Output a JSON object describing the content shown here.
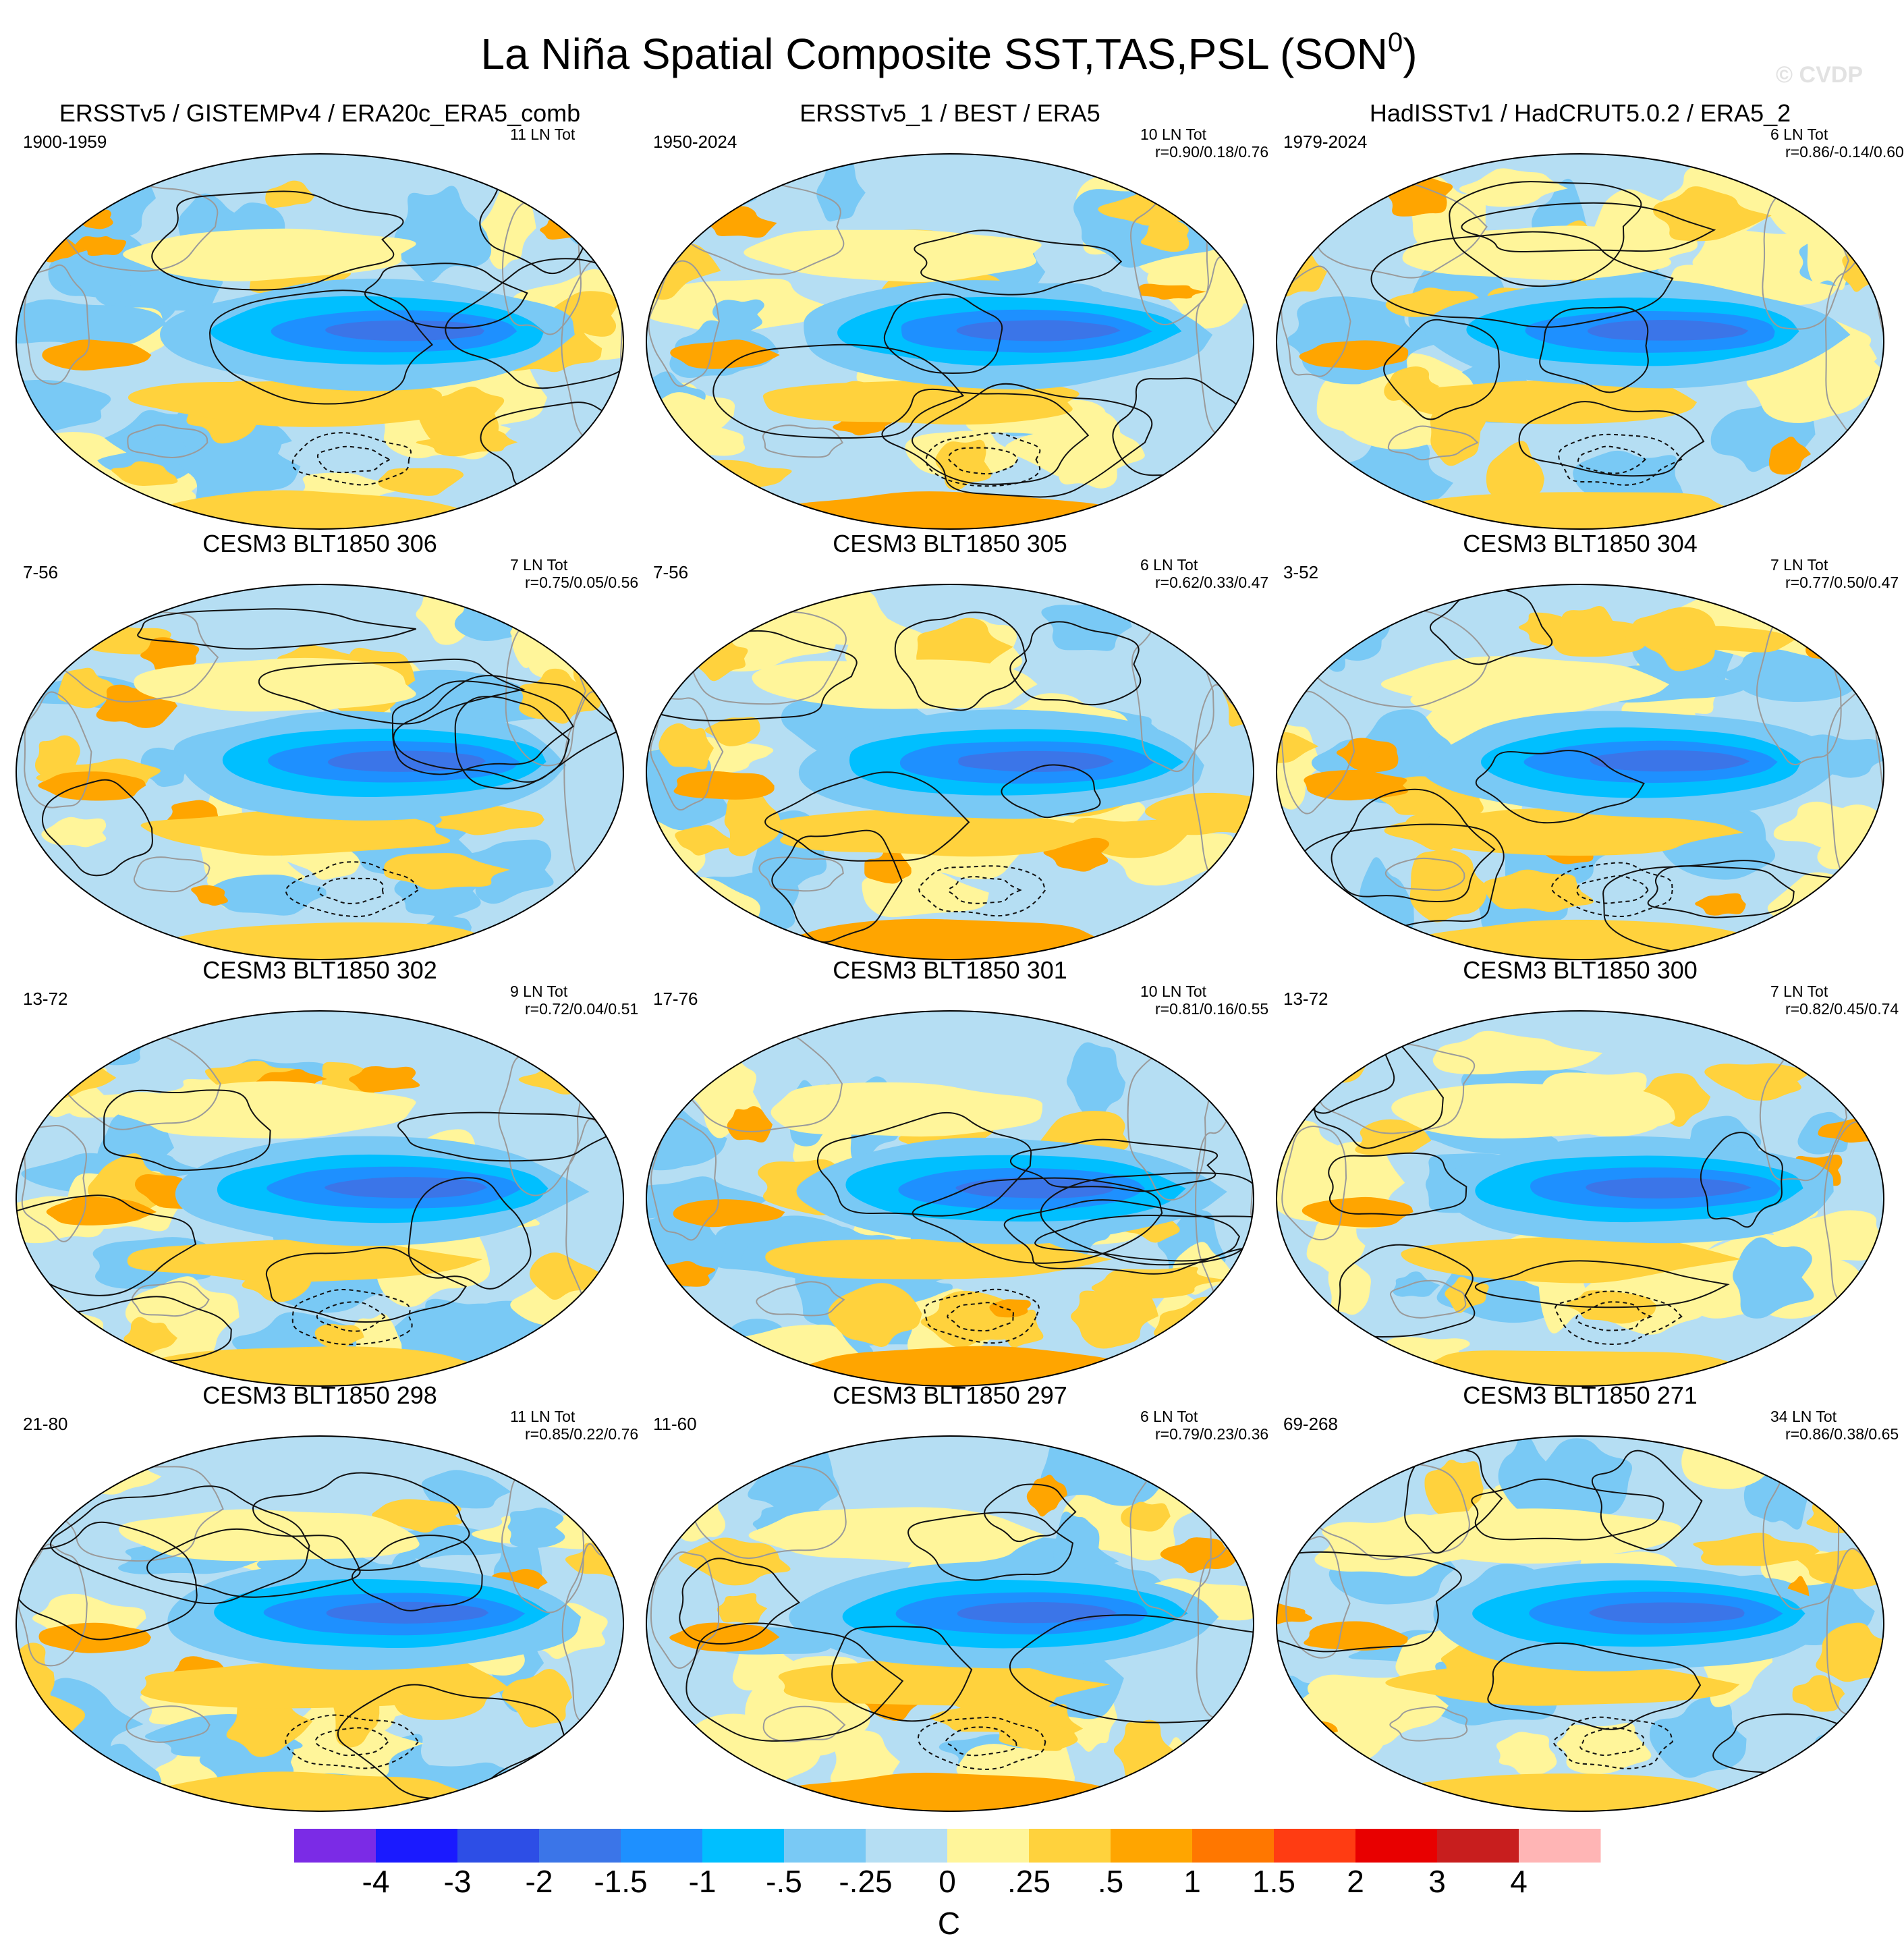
{
  "figure": {
    "title": "La Niña Spatial Composite SST,TAS,PSL (SON",
    "title_sup": "0",
    "title_close": ")",
    "watermark": "© CVDP"
  },
  "panels": [
    {
      "title": "ERSSTv5 / GISTEMPv4 / ERA20c_ERA5_comb",
      "years": "1900-1959",
      "count": "11 LN Tot",
      "r": "",
      "variant": 0
    },
    {
      "title": "ERSSTv5_1 / BEST / ERA5",
      "years": "1950-2024",
      "count": "10 LN Tot",
      "r": "r=0.90/0.18/0.76",
      "variant": 1
    },
    {
      "title": "HadISSTv1 / HadCRUT5.0.2 / ERA5_2",
      "years": "1979-2024",
      "count": "6 LN Tot",
      "r": "r=0.86/-0.14/0.60",
      "variant": 2
    },
    {
      "title": "CESM3 BLT1850 306",
      "years": "7-56",
      "count": "7 LN Tot",
      "r": "r=0.75/0.05/0.56",
      "variant": 3
    },
    {
      "title": "CESM3 BLT1850 305",
      "years": "7-56",
      "count": "6 LN Tot",
      "r": "r=0.62/0.33/0.47",
      "variant": 4
    },
    {
      "title": "CESM3 BLT1850 304",
      "years": "3-52",
      "count": "7 LN Tot",
      "r": "r=0.77/0.50/0.47",
      "variant": 5
    },
    {
      "title": "CESM3 BLT1850 302",
      "years": "13-72",
      "count": "9 LN Tot",
      "r": "r=0.72/0.04/0.51",
      "variant": 6
    },
    {
      "title": "CESM3 BLT1850 301",
      "years": "17-76",
      "count": "10 LN Tot",
      "r": "r=0.81/0.16/0.55",
      "variant": 7
    },
    {
      "title": "CESM3 BLT1850 300",
      "years": "13-72",
      "count": "7 LN Tot",
      "r": "r=0.82/0.45/0.74",
      "variant": 8
    },
    {
      "title": "CESM3 BLT1850 298",
      "years": "21-80",
      "count": "11 LN Tot",
      "r": "r=0.85/0.22/0.76",
      "variant": 9
    },
    {
      "title": "CESM3 BLT1850 297",
      "years": "11-60",
      "count": "6 LN Tot",
      "r": "r=0.79/0.23/0.36",
      "variant": 10
    },
    {
      "title": "CESM3 BLT1850 271",
      "years": "69-268",
      "count": "34 LN Tot",
      "r": "r=0.86/0.38/0.65",
      "variant": 11
    }
  ],
  "colorbar": {
    "unit": "C",
    "labels": [
      "-4",
      "-3",
      "-2",
      "-1.5",
      "-1",
      "-.5",
      "-.25",
      "0",
      ".25",
      ".5",
      "1",
      "1.5",
      "2",
      "3",
      "4"
    ],
    "colors": [
      "#7b2be6",
      "#1a1aff",
      "#2d4ee6",
      "#3b75e8",
      "#1e90ff",
      "#00bfff",
      "#79c9f5",
      "#b5def3",
      "#fff59a",
      "#ffd23d",
      "#ffa500",
      "#ff7700",
      "#ff3c12",
      "#e80000",
      "#c81e1e",
      "#ffb5b5"
    ]
  }
}
